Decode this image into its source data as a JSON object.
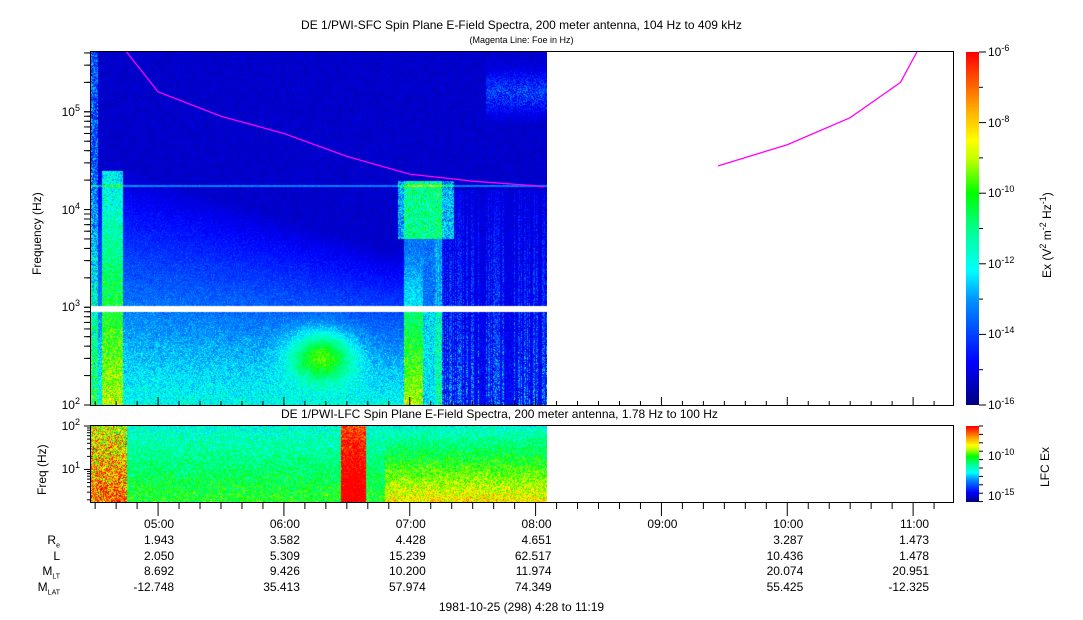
{
  "chart_data": [
    {
      "type": "heatmap",
      "title": "DE 1/PWI-SFC  Spin Plane E-Field Spectra, 200 meter antenna, 104 Hz to 409 kHz",
      "subtitle": "(Magenta Line: Foe in Hz)",
      "ylabel": "Frequency (Hz)",
      "ylim_hz": [
        100,
        409000
      ],
      "yscale": "log",
      "yticks": [
        {
          "base": "10",
          "exp": "2"
        },
        {
          "base": "10",
          "exp": "3"
        },
        {
          "base": "10",
          "exp": "4"
        },
        {
          "base": "10",
          "exp": "5"
        }
      ],
      "x_range_hours": [
        4.467,
        11.317
      ],
      "data_end_hour": 8.08,
      "data_gap_hz": [
        900,
        1050
      ],
      "colorbar": {
        "label": "Ex (V",
        "label_rest": "2",
        "label_m": " m",
        "label_m_exp": "-2",
        "label_hz": " Hz",
        "label_hz_exp": "-1",
        "label_close": ")",
        "range_log10": [
          -16,
          -6
        ],
        "ticks": [
          {
            "base": "10",
            "exp": "-6"
          },
          {
            "base": "10",
            "exp": "-8"
          },
          {
            "base": "10",
            "exp": "-10"
          },
          {
            "base": "10",
            "exp": "-12"
          },
          {
            "base": "10",
            "exp": "-14"
          },
          {
            "base": "10",
            "exp": "-16"
          }
        ]
      },
      "foe_line": {
        "color": "#ff00ff",
        "segments": [
          [
            [
              4.75,
              409000
            ],
            [
              5.0,
              160000
            ],
            [
              5.5,
              90000
            ],
            [
              6.0,
              60000
            ],
            [
              6.5,
              35000
            ],
            [
              7.0,
              23000
            ],
            [
              7.5,
              19500
            ],
            [
              8.0,
              17500
            ],
            [
              8.07,
              17000
            ]
          ],
          [
            [
              9.45,
              28000
            ],
            [
              10.0,
              46000
            ],
            [
              10.5,
              87000
            ],
            [
              10.9,
              200000
            ],
            [
              11.03,
              409000
            ]
          ]
        ]
      }
    },
    {
      "type": "heatmap",
      "title": "DE 1/PWI-LFC  Spin Plane E-Field Spectra, 200 meter antenna, 1.78 Hz to 100 Hz",
      "ylabel": "Freq (Hz)",
      "ylim_hz": [
        1.78,
        100
      ],
      "yscale": "log",
      "yticks": [
        {
          "base": "10",
          "exp": "1"
        },
        {
          "base": "10",
          "exp": "2"
        }
      ],
      "colorbar": {
        "label": "LFC Ex",
        "range_log10": [
          -16.5,
          -7
        ],
        "ticks": [
          {
            "base": "10",
            "exp": "-10"
          },
          {
            "base": "10",
            "exp": "-15"
          }
        ]
      }
    }
  ],
  "time_axis": {
    "ticks": [
      "05:00",
      "06:00",
      "07:00",
      "08:00",
      "09:00",
      "10:00",
      "11:00"
    ],
    "hours": [
      5,
      6,
      7,
      8,
      9,
      10,
      11
    ]
  },
  "ephemeris": {
    "rows": [
      {
        "label": "R",
        "sub": "e",
        "values": [
          "1.943",
          "3.582",
          "4.428",
          "4.651",
          "",
          "3.287",
          "1.473"
        ]
      },
      {
        "label": "L",
        "sub": "",
        "values": [
          "2.050",
          "5.309",
          "15.239",
          "62.517",
          "",
          "10.436",
          "1.478"
        ]
      },
      {
        "label": "M",
        "sub": "LT",
        "values": [
          "8.692",
          "9.426",
          "10.200",
          "11.974",
          "",
          "20.074",
          "20.951"
        ]
      },
      {
        "label": "M",
        "sub": "LAT",
        "values": [
          "-12.748",
          "35.413",
          "57.974",
          "74.349",
          "",
          "55.425",
          "-12.325"
        ]
      }
    ]
  },
  "footer": "1981-10-25 (298) 4:28 to 11:19"
}
